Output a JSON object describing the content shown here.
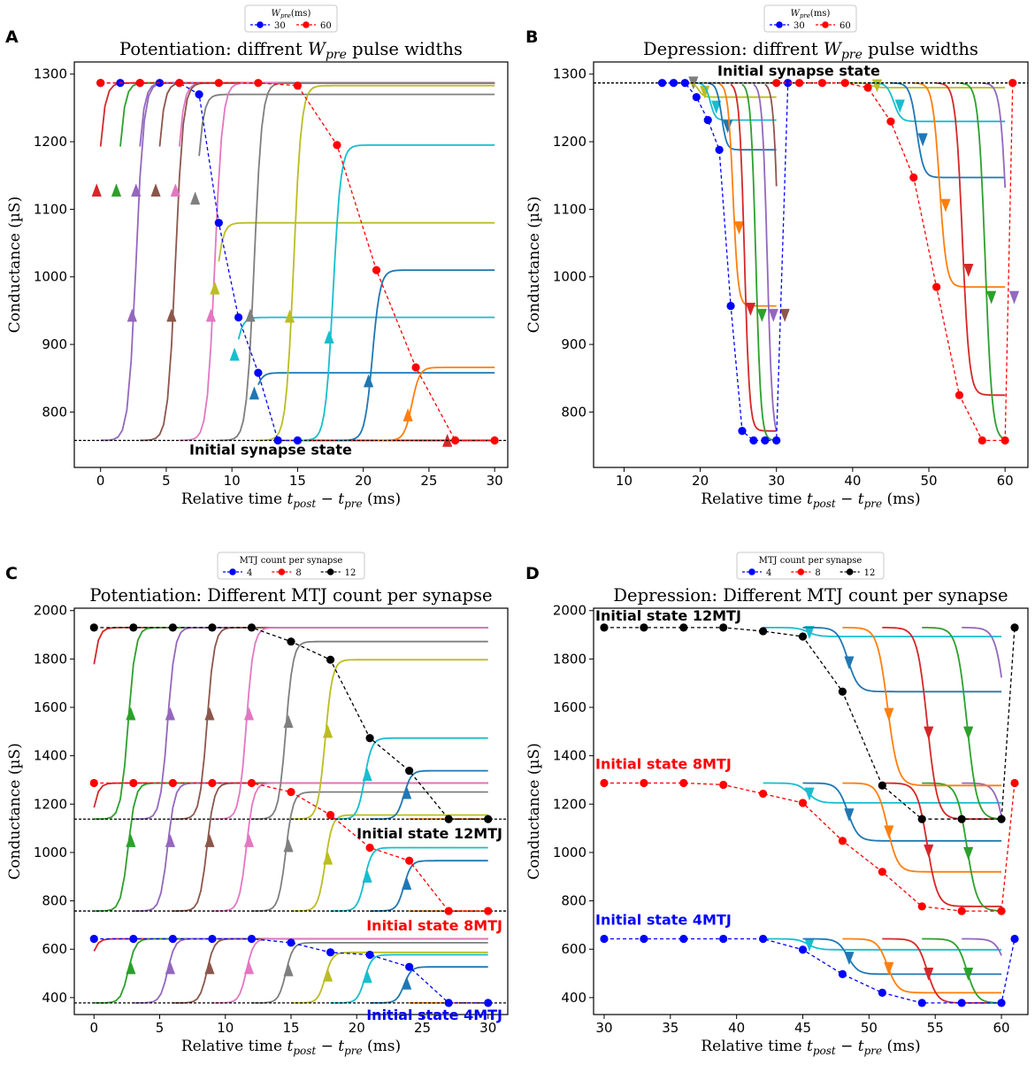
{
  "figure_labels": {
    "A": "A",
    "B": "B",
    "C": "C",
    "D": "D"
  },
  "titles": {
    "A": [
      "Potentiation: diffrent ",
      "W",
      "pre",
      " pulse widths"
    ],
    "B": [
      "Depression: diffrent ",
      "W",
      "pre",
      " pulse widths"
    ],
    "C": "Potentiation: Different MTJ count per synapse",
    "D": "Depression: Different MTJ count per synapse"
  },
  "xlabel_parts": [
    "Relative time ",
    "t",
    "post",
    " − ",
    "t",
    "pre",
    " (ms)"
  ],
  "ylabel": "Conductance (µS)",
  "legend_wpre": {
    "title_main": "W",
    "title_sub": "pre",
    "title_unit": "(ms)",
    "entries": [
      "30",
      "60"
    ]
  },
  "legend_mtj": {
    "title": "MTJ count per synapse",
    "entries": [
      "4",
      "8",
      "12"
    ]
  },
  "annotations": {
    "A_init": "Initial synapse state",
    "B_init": "Initial synapse state",
    "C_12": "Initial state 12MTJ",
    "C_8": "Initial state 8MTJ",
    "C_4": "Initial state 4MTJ",
    "D_12": "Initial state 12MTJ",
    "D_8": "Initial state 8MTJ",
    "D_4": "Initial state 4MTJ"
  },
  "colors": {
    "blue": "#0000ff",
    "red": "#ff0000",
    "black": "#000000",
    "palette": [
      "#d62728",
      "#2ca02c",
      "#9467bd",
      "#8c564b",
      "#e377c2",
      "#7f7f7f",
      "#bcbd22",
      "#17becf",
      "#1f77b4",
      "#ff7f0e"
    ]
  },
  "chart_data": [
    {
      "panel": "A",
      "type": "line",
      "xlim": [
        -2,
        31
      ],
      "ylim": [
        718,
        1318
      ],
      "xticks": [
        0,
        5,
        10,
        15,
        20,
        25,
        30
      ],
      "yticks": [
        800,
        900,
        1000,
        1100,
        1200,
        1300
      ],
      "baseline": 758,
      "series": [
        {
          "name": "30",
          "x": [
            0,
            1.5,
            3,
            4.5,
            6,
            7.5,
            9,
            10.5,
            12,
            13.5,
            15
          ],
          "y": [
            1287,
            1287,
            1287,
            1287,
            1287,
            1270,
            1080,
            940,
            858,
            758,
            758
          ]
        },
        {
          "name": "60",
          "x": [
            0,
            3,
            6,
            9,
            12,
            15,
            18,
            21,
            24,
            27,
            30
          ],
          "y": [
            1287,
            1287,
            1287,
            1287,
            1287,
            1283,
            1195,
            1010,
            866,
            758,
            758
          ]
        }
      ]
    },
    {
      "panel": "B",
      "type": "line",
      "xlim": [
        6,
        63
      ],
      "ylim": [
        718,
        1318
      ],
      "xticks": [
        10,
        20,
        30,
        40,
        50,
        60
      ],
      "yticks": [
        800,
        900,
        1000,
        1100,
        1200,
        1300
      ],
      "baseline": 1287,
      "series": [
        {
          "name": "30",
          "x": [
            15,
            16.5,
            18,
            19.5,
            21,
            22.5,
            24,
            25.5,
            27,
            28.5,
            30,
            31.5
          ],
          "y": [
            1287,
            1287,
            1287,
            1266,
            1232,
            1188,
            957,
            772,
            758,
            758,
            758,
            1287
          ]
        },
        {
          "name": "60",
          "x": [
            30,
            33,
            36,
            39,
            42,
            45,
            48,
            51,
            54,
            57,
            60,
            61
          ],
          "y": [
            1287,
            1287,
            1287,
            1287,
            1280,
            1230,
            1147,
            985,
            825,
            758,
            758,
            1287
          ]
        }
      ]
    },
    {
      "panel": "C",
      "type": "line",
      "xlim": [
        -1.5,
        31.5
      ],
      "ylim": [
        330,
        2010
      ],
      "xticks": [
        0,
        5,
        10,
        15,
        20,
        25,
        30
      ],
      "yticks": [
        400,
        600,
        800,
        1000,
        1200,
        1400,
        1600,
        1800,
        2000
      ],
      "baselines": {
        "12": 1138,
        "8": 758,
        "4": 378
      },
      "series": [
        {
          "name": "4",
          "x": [
            0,
            3,
            6,
            9,
            12,
            15,
            18,
            21,
            24,
            27,
            30
          ],
          "y": [
            643,
            643,
            643,
            643,
            643,
            627,
            587,
            577,
            527,
            378,
            378
          ]
        },
        {
          "name": "8",
          "x": [
            0,
            3,
            6,
            9,
            12,
            15,
            18,
            21,
            24,
            27,
            30
          ],
          "y": [
            1287,
            1287,
            1287,
            1287,
            1287,
            1250,
            1155,
            1020,
            966,
            758,
            758
          ]
        },
        {
          "name": "12",
          "x": [
            0,
            3,
            6,
            9,
            12,
            15,
            18,
            21,
            24,
            27,
            30
          ],
          "y": [
            1930,
            1930,
            1930,
            1930,
            1930,
            1872,
            1797,
            1473,
            1338,
            1138,
            1138
          ]
        }
      ]
    },
    {
      "panel": "D",
      "type": "line",
      "xlim": [
        29.2,
        62
      ],
      "ylim": [
        330,
        2010
      ],
      "xticks": [
        30,
        35,
        40,
        45,
        50,
        55,
        60
      ],
      "yticks": [
        400,
        600,
        800,
        1000,
        1200,
        1400,
        1600,
        1800,
        2000
      ],
      "series": [
        {
          "name": "4",
          "x": [
            30,
            33,
            36,
            39,
            42,
            45,
            48,
            51,
            54,
            57,
            60,
            61
          ],
          "y": [
            643,
            643,
            643,
            643,
            643,
            598,
            497,
            420,
            378,
            378,
            378,
            643
          ]
        },
        {
          "name": "8",
          "x": [
            30,
            33,
            36,
            39,
            42,
            45,
            48,
            51,
            54,
            57,
            60,
            61
          ],
          "y": [
            1287,
            1287,
            1287,
            1280,
            1243,
            1205,
            1048,
            920,
            777,
            758,
            758,
            1287
          ]
        },
        {
          "name": "12",
          "x": [
            30,
            33,
            36,
            39,
            42,
            45,
            48,
            51,
            54,
            57,
            60,
            61
          ],
          "y": [
            1930,
            1930,
            1930,
            1930,
            1915,
            1893,
            1665,
            1277,
            1138,
            1138,
            1138,
            1930
          ]
        }
      ]
    }
  ]
}
